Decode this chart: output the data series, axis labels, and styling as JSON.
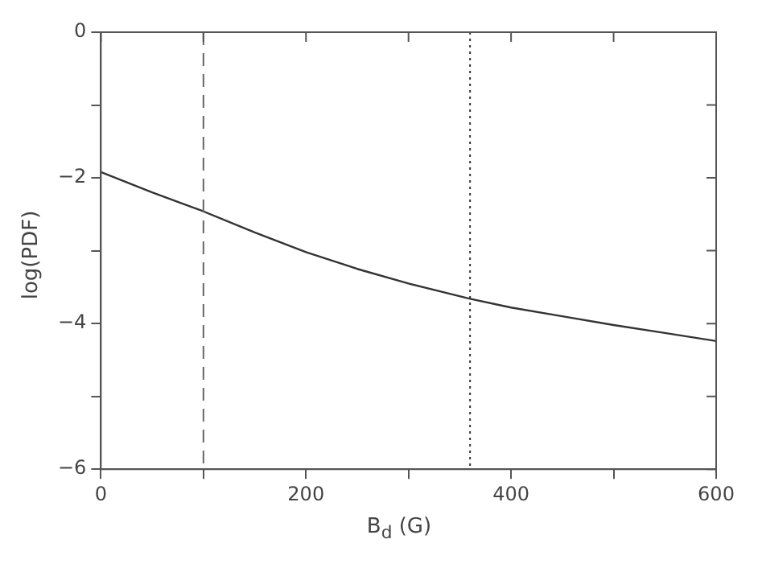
{
  "chart_data": {
    "type": "line",
    "xlabel": "B$_{d}$ (G)",
    "ylabel": "log(PDF)",
    "x": [
      0,
      50,
      100,
      150,
      200,
      250,
      300,
      360,
      400,
      450,
      500,
      550,
      600
    ],
    "series": [
      {
        "color": "#333333",
        "values": [
          -1.92,
          -2.2,
          -2.46,
          -2.75,
          -3.02,
          -3.25,
          -3.45,
          -3.66,
          -3.78,
          -3.9,
          -4.02,
          -4.13,
          -4.24
        ]
      }
    ],
    "xlim": [
      0,
      600
    ],
    "ylim": [
      -6,
      0
    ],
    "xticks": [
      0,
      {
        "value": 100,
        "label": null
      },
      200,
      {
        "value": 300,
        "label": null
      },
      400,
      {
        "value": 500,
        "label": null
      },
      600
    ],
    "yticks": [
      -6,
      {
        "value": -5,
        "label": null
      },
      -4,
      {
        "value": -3,
        "label": null
      },
      -2,
      {
        "value": -1,
        "label": null
      },
      0
    ],
    "ref_lines": [
      {
        "axis": "x",
        "value": 100,
        "line_style": "dashed",
        "color": "#666666"
      },
      {
        "axis": "x",
        "value": 360,
        "line_style": "dotted",
        "color": "#333333"
      }
    ],
    "marker": "none",
    "line_style": "solid",
    "legend": false,
    "grid": false
  }
}
